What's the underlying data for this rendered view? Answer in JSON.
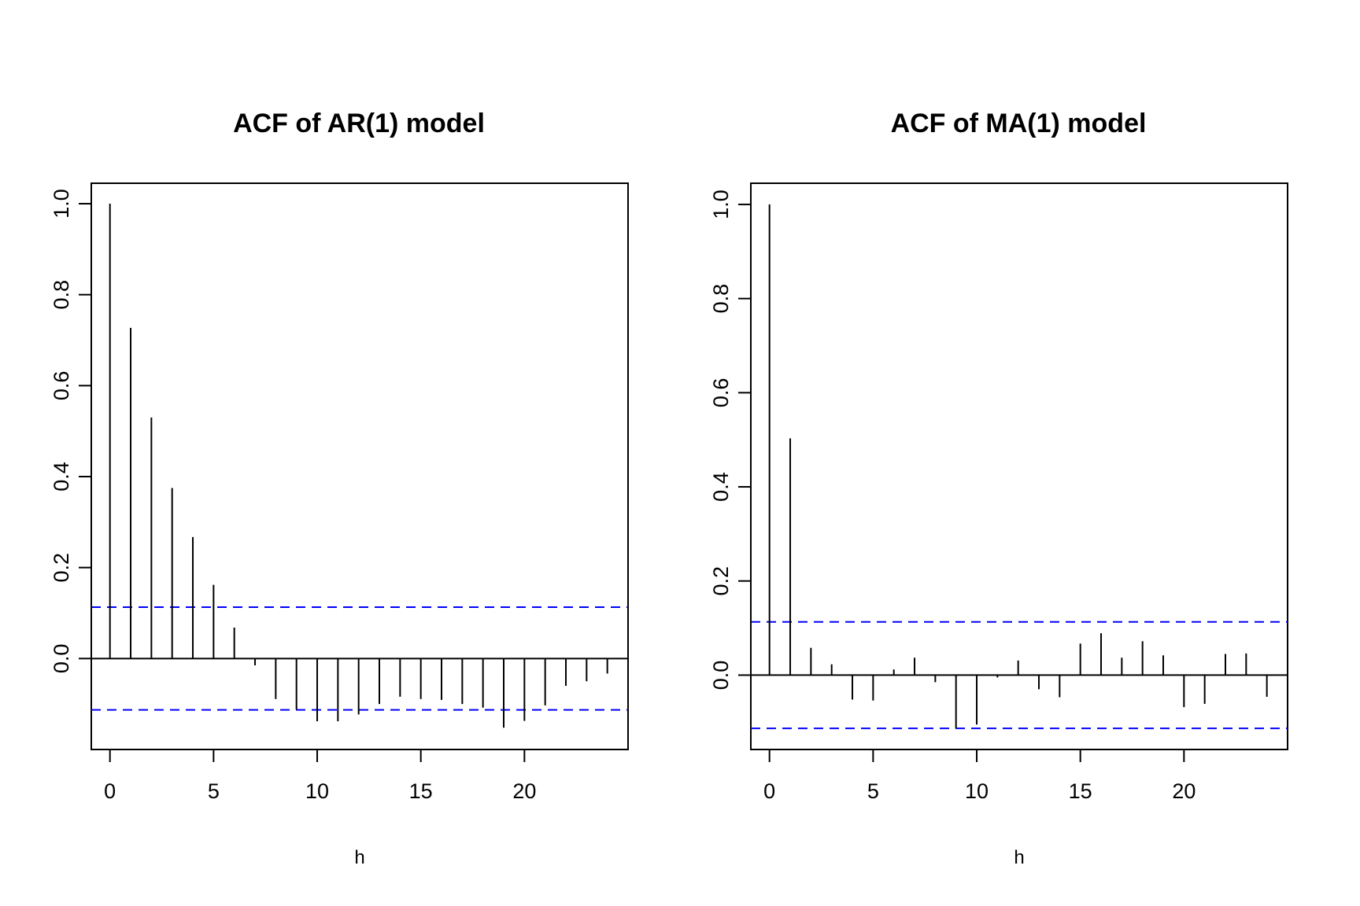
{
  "chart_data": [
    {
      "type": "bar",
      "title": "ACF of AR(1) model",
      "xlabel": "h",
      "ylabel": "",
      "x": [
        0,
        1,
        2,
        3,
        4,
        5,
        6,
        7,
        8,
        9,
        10,
        11,
        12,
        13,
        14,
        15,
        16,
        17,
        18,
        19,
        20,
        21,
        22,
        23,
        24
      ],
      "values": [
        1.0,
        0.727,
        0.53,
        0.375,
        0.267,
        0.162,
        0.068,
        -0.015,
        -0.089,
        -0.112,
        -0.138,
        -0.138,
        -0.123,
        -0.1,
        -0.084,
        -0.089,
        -0.091,
        -0.1,
        -0.108,
        -0.152,
        -0.137,
        -0.103,
        -0.06,
        -0.05,
        -0.033
      ],
      "conf_limits": [
        0.113,
        -0.113
      ],
      "xlim": [
        -0.9,
        25.0
      ],
      "ylim": [
        -0.2,
        1.045
      ],
      "xticks": [
        0,
        5,
        10,
        15,
        20
      ],
      "yticks": [
        0.0,
        0.2,
        0.4,
        0.6,
        0.8,
        1.0
      ],
      "xtick_labels": [
        "0",
        "5",
        "10",
        "15",
        "20"
      ],
      "ytick_labels": [
        "0.0",
        "0.2",
        "0.4",
        "0.6",
        "0.8",
        "1.0"
      ],
      "grid": false,
      "colors": {
        "spikes": "#000000",
        "conf_limits": "#0000ff",
        "axes": "#000000"
      }
    },
    {
      "type": "bar",
      "title": "ACF of MA(1) model",
      "xlabel": "h",
      "ylabel": "",
      "x": [
        0,
        1,
        2,
        3,
        4,
        5,
        6,
        7,
        8,
        9,
        10,
        11,
        12,
        13,
        14,
        15,
        16,
        17,
        18,
        19,
        20,
        21,
        22,
        23,
        24
      ],
      "values": [
        1.0,
        0.503,
        0.058,
        0.023,
        -0.052,
        -0.054,
        0.012,
        0.037,
        -0.015,
        -0.113,
        -0.105,
        -0.005,
        0.031,
        -0.03,
        -0.047,
        0.067,
        0.089,
        0.037,
        0.072,
        0.042,
        -0.068,
        -0.061,
        0.045,
        0.046,
        -0.046
      ],
      "conf_limits": [
        0.113,
        -0.113
      ],
      "xlim": [
        -0.9,
        25.0
      ],
      "ylim": [
        -0.158,
        1.045
      ],
      "xticks": [
        0,
        5,
        10,
        15,
        20
      ],
      "yticks": [
        0.0,
        0.2,
        0.4,
        0.6,
        0.8,
        1.0
      ],
      "xtick_labels": [
        "0",
        "5",
        "10",
        "15",
        "20"
      ],
      "ytick_labels": [
        "0.0",
        "0.2",
        "0.4",
        "0.6",
        "0.8",
        "1.0"
      ],
      "grid": false,
      "colors": {
        "spikes": "#000000",
        "conf_limits": "#0000ff",
        "axes": "#000000"
      }
    }
  ]
}
